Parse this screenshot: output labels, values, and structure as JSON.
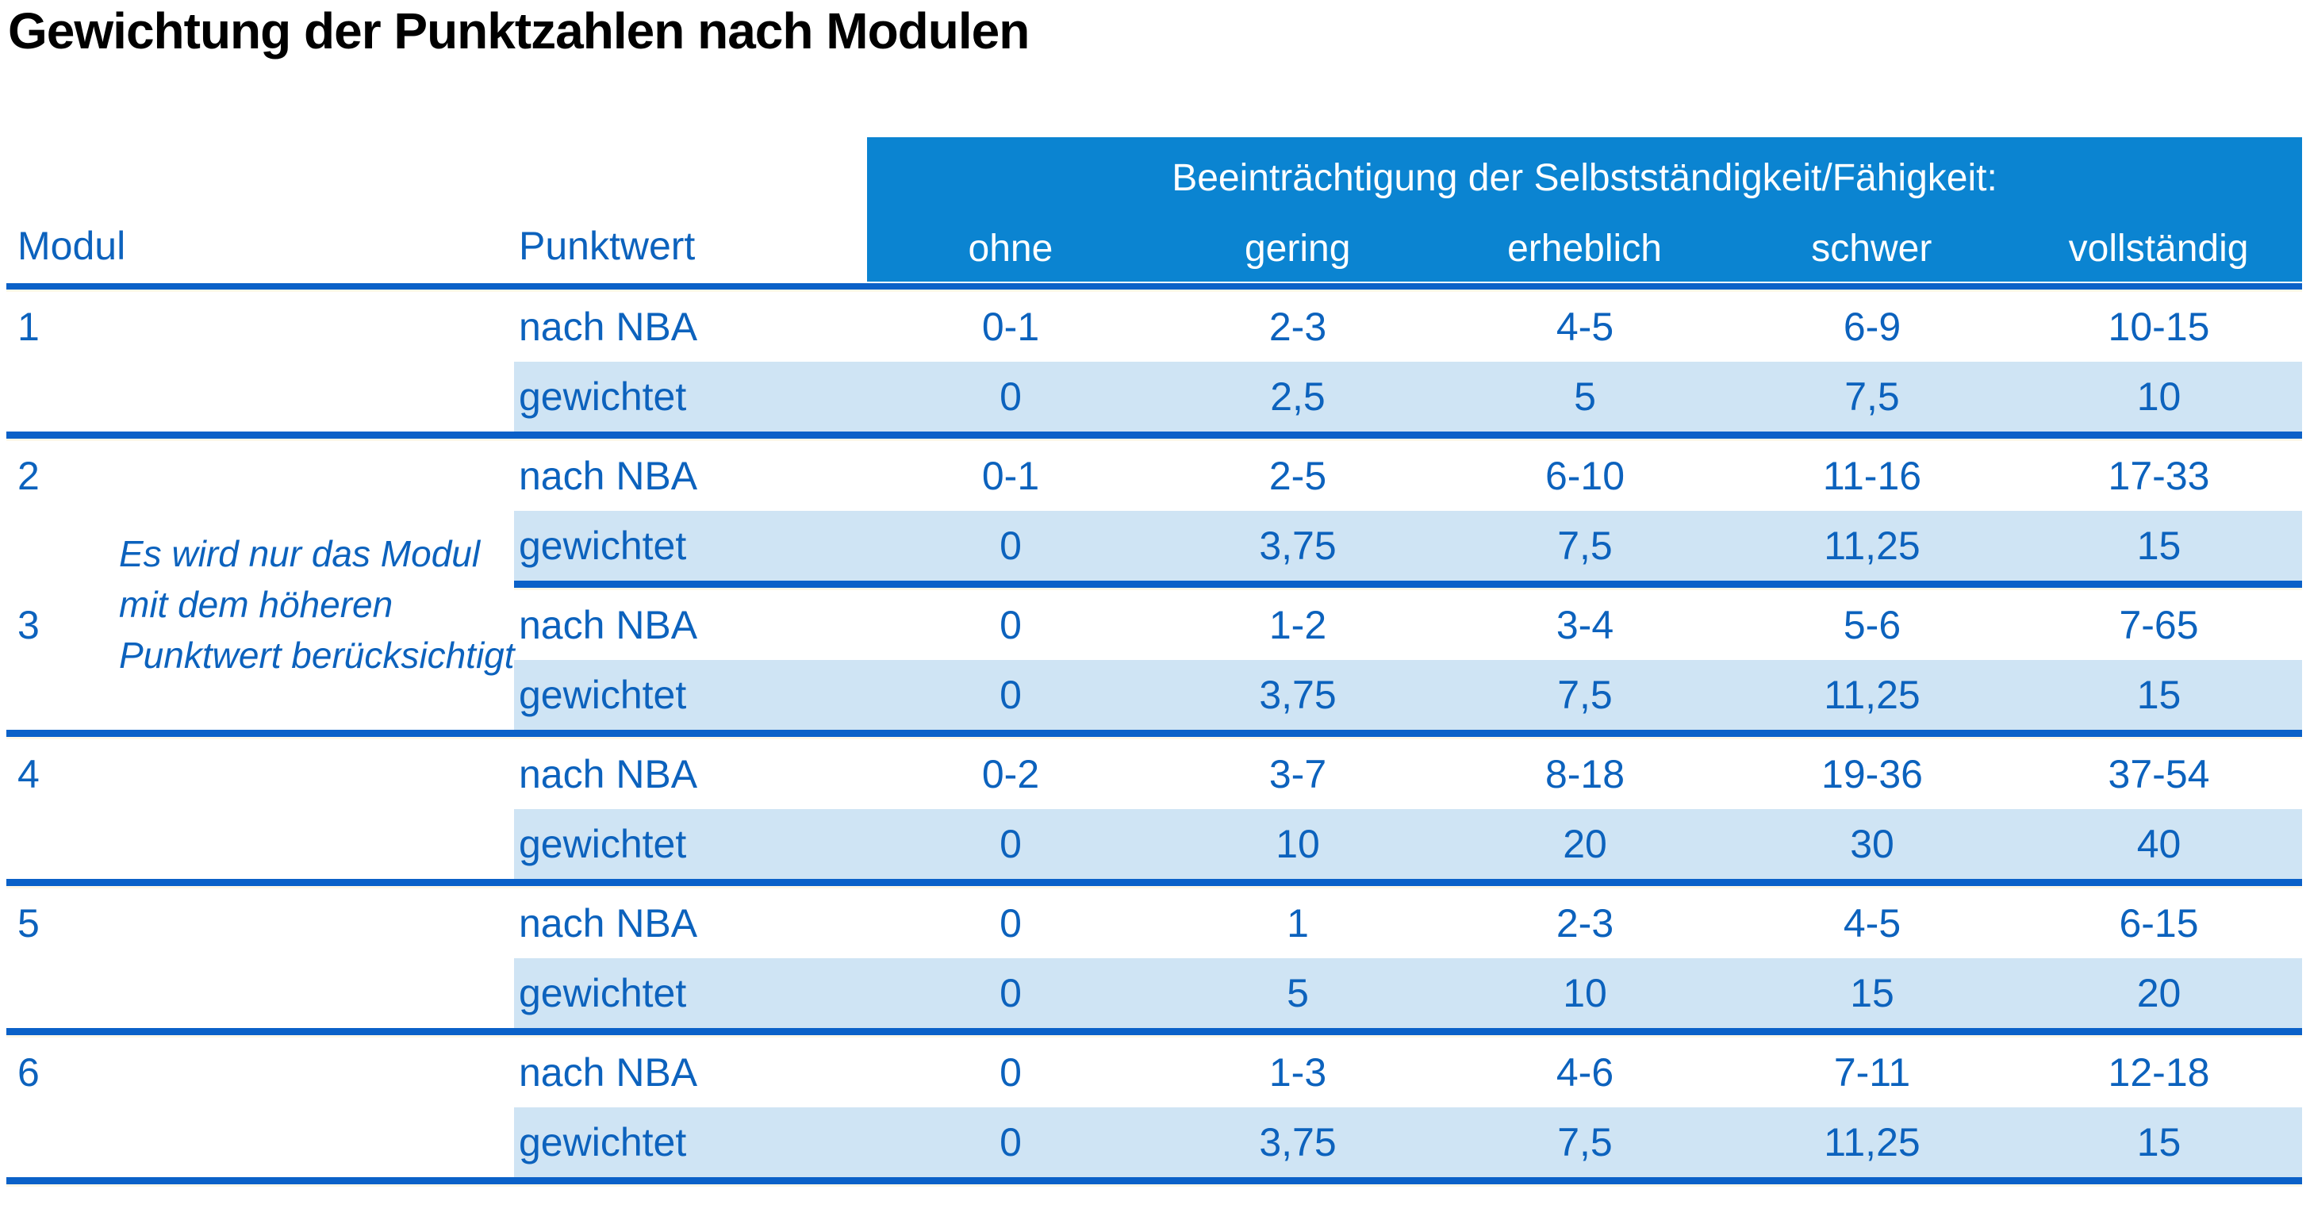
{
  "title": "Gewichtung der Punktzahlen nach Modulen",
  "table": {
    "header": {
      "modul": "Modul",
      "punktwert": "Punktwert",
      "impairment_title": "Beeinträchtigung der Selbstständigkeit/Fähigkeit:",
      "severity_levels": [
        "ohne",
        "gering",
        "erheblich",
        "schwer",
        "vollständig"
      ]
    },
    "row_labels": {
      "nba": "nach NBA",
      "weighted": "gewichtet"
    },
    "note": {
      "line1": "Es wird nur das Modul",
      "line2": "mit dem höheren",
      "line3": "Punktwert berücksichtigt"
    },
    "modules": [
      {
        "id": "1",
        "nba": [
          "0-1",
          "2-3",
          "4-5",
          "6-9",
          "10-15"
        ],
        "weighted": [
          "0",
          "2,5",
          "5",
          "7,5",
          "10"
        ]
      },
      {
        "id": "2",
        "nba": [
          "0-1",
          "2-5",
          "6-10",
          "11-16",
          "17-33"
        ],
        "weighted": [
          "0",
          "3,75",
          "7,5",
          "11,25",
          "15"
        ]
      },
      {
        "id": "3",
        "nba": [
          "0",
          "1-2",
          "3-4",
          "5-6",
          "7-65"
        ],
        "weighted": [
          "0",
          "3,75",
          "7,5",
          "11,25",
          "15"
        ]
      },
      {
        "id": "4",
        "nba": [
          "0-2",
          "3-7",
          "8-18",
          "19-36",
          "37-54"
        ],
        "weighted": [
          "0",
          "10",
          "20",
          "30",
          "40"
        ]
      },
      {
        "id": "5",
        "nba": [
          "0",
          "1",
          "2-3",
          "4-5",
          "6-15"
        ],
        "weighted": [
          "0",
          "5",
          "10",
          "15",
          "20"
        ]
      },
      {
        "id": "6",
        "nba": [
          "0",
          "1-3",
          "4-6",
          "7-11",
          "12-18"
        ],
        "weighted": [
          "0",
          "3,75",
          "7,5",
          "11,25",
          "15"
        ]
      }
    ],
    "colors": {
      "band_blue": "#0b84d1",
      "line_blue": "#0b61c8",
      "text_blue": "#0c62bd",
      "weighted_row_bg": "#cfe4f4",
      "title_color": "#000000"
    }
  }
}
